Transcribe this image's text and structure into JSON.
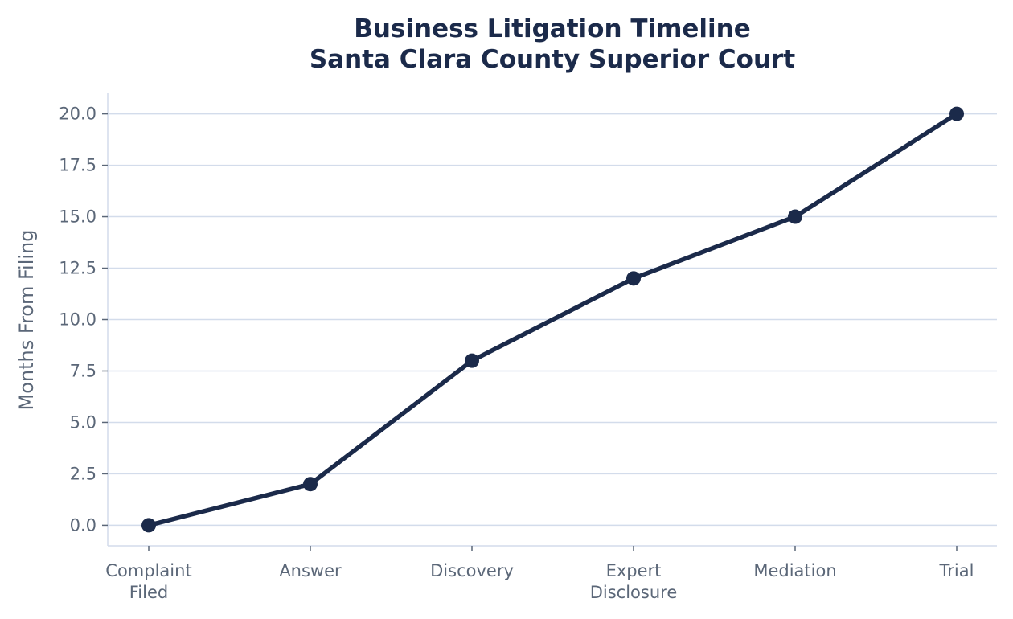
{
  "chart_data": {
    "type": "line",
    "title_lines": [
      "Business Litigation Timeline",
      "Santa Clara County Superior Court"
    ],
    "xlabel": "",
    "ylabel": "Months From Filing",
    "categories": [
      [
        "Complaint",
        "Filed"
      ],
      [
        "Answer"
      ],
      [
        "Discovery"
      ],
      [
        "Expert",
        "Disclosure"
      ],
      [
        "Mediation"
      ],
      [
        "Trial"
      ]
    ],
    "series": [
      {
        "values": [
          0,
          2,
          8,
          12,
          15,
          20
        ]
      }
    ],
    "ylim": [
      -1,
      21
    ],
    "yticks": [
      "0.0",
      "2.5",
      "5.0",
      "7.5",
      "10.0",
      "12.5",
      "15.0",
      "17.5",
      "20.0"
    ],
    "grid": true,
    "legend": "none",
    "colors": {
      "line": "#1b2a4a",
      "grid": "#d3dceb",
      "text": "#5b6778",
      "title": "#1b2a4a"
    }
  }
}
